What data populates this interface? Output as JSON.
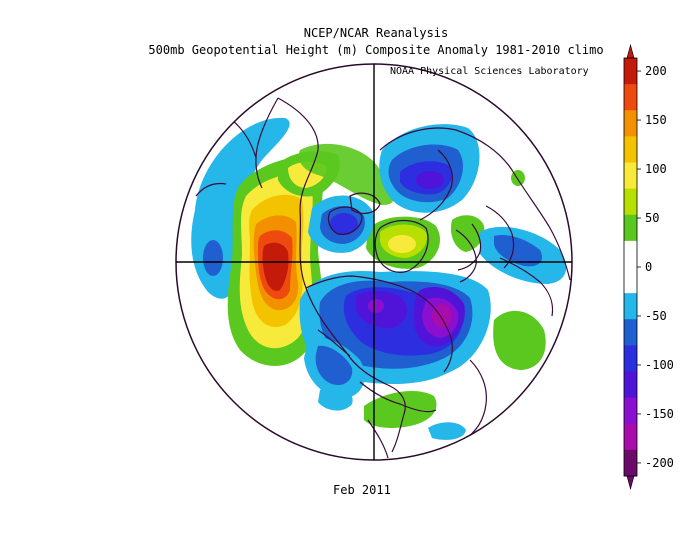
{
  "header": {
    "line1": "NCEP/NCAR Reanalysis",
    "line2": "500mb Geopotential Height (m) Composite Anomaly 1981-2010 climo",
    "credit": "NOAA Physical Sciences Laboratory"
  },
  "footer": {
    "date": "Feb 2011"
  },
  "colorbar": {
    "units": "m",
    "ticks": [
      "200",
      "150",
      "100",
      "50",
      "0",
      "-50",
      "-100",
      "-150",
      "-200"
    ],
    "bins": [
      {
        "range": [
          175,
          200
        ],
        "color": "#c41a0a"
      },
      {
        "range": [
          150,
          175
        ],
        "color": "#ee4a10"
      },
      {
        "range": [
          125,
          150
        ],
        "color": "#f39000"
      },
      {
        "range": [
          100,
          125
        ],
        "color": "#f4c300"
      },
      {
        "range": [
          75,
          100
        ],
        "color": "#f7ea3a"
      },
      {
        "range": [
          50,
          75
        ],
        "color": "#b7e000"
      },
      {
        "range": [
          25,
          50
        ],
        "color": "#5ac81e"
      },
      {
        "range": [
          0,
          25
        ],
        "color": "#ffffff"
      },
      {
        "range": [
          -25,
          0
        ],
        "color": "#ffffff"
      },
      {
        "range": [
          -50,
          -25
        ],
        "color": "#25b6ea"
      },
      {
        "range": [
          -75,
          -50
        ],
        "color": "#1f5fd0"
      },
      {
        "range": [
          -100,
          -75
        ],
        "color": "#2c2ee0"
      },
      {
        "range": [
          -125,
          -100
        ],
        "color": "#5014d8"
      },
      {
        "range": [
          -150,
          -125
        ],
        "color": "#8a0fcf"
      },
      {
        "range": [
          -175,
          -150
        ],
        "color": "#a80caa"
      },
      {
        "range": [
          -200,
          -175
        ],
        "color": "#6b0a68"
      }
    ]
  },
  "map": {
    "projection": "north polar stereographic",
    "field": "500mb geopotential height anomaly",
    "coastline_color": "#3a0c3a",
    "anomalies": [
      {
        "region": "Eastern North Pacific / Gulf of Alaska",
        "sign": "positive",
        "peak_m": 190
      },
      {
        "region": "Subtropical Central Pacific",
        "sign": "positive",
        "peak_m": 75
      },
      {
        "region": "North Pacific (west)",
        "sign": "negative",
        "peak_m": -50
      },
      {
        "region": "Greenland / Baffin Bay",
        "sign": "positive",
        "peak_m": 100
      },
      {
        "region": "Central Russia / Siberia",
        "sign": "negative",
        "peak_m": -125
      },
      {
        "region": "Western Europe / North Atlantic",
        "sign": "positive",
        "peak_m": 60
      },
      {
        "region": "Arctic Canada / Hudson Bay",
        "sign": "negative",
        "peak_m": -160
      },
      {
        "region": "North Atlantic / Labrador Sea",
        "sign": "negative",
        "peak_m": -170
      },
      {
        "region": "Alaska / Bering",
        "sign": "negative",
        "peak_m": -90
      },
      {
        "region": "Subtropical North Atlantic",
        "sign": "positive",
        "peak_m": 60
      },
      {
        "region": "Southeast Asia",
        "sign": "positive",
        "peak_m": 55
      }
    ]
  }
}
